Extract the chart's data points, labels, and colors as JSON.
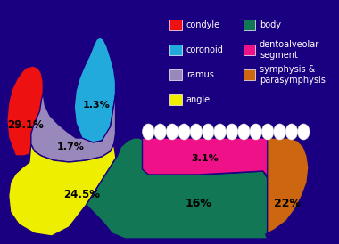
{
  "background_color": "#1a0080",
  "colors": {
    "condyle": "#ee1111",
    "coronoid": "#22aadd",
    "ramus": "#9988bb",
    "angle": "#eeee00",
    "body": "#117755",
    "dentoalveolar": "#ee1188",
    "symphysis": "#cc6611"
  },
  "white": "#ffffff",
  "black": "#000000",
  "label_fontsize": 7.5,
  "legend_fontsize": 7.0,
  "legend_left": [
    [
      "condyle",
      "#ee1111"
    ],
    [
      "coronoid",
      "#22aadd"
    ],
    [
      "ramus",
      "#9988bb"
    ],
    [
      "angle",
      "#eeee00"
    ]
  ],
  "legend_right": [
    [
      "body",
      "#117755"
    ],
    [
      "dentoalveolar\nsegment",
      "#ee1188"
    ],
    [
      "symphysis &\nparasymphysis",
      "#cc6611"
    ]
  ]
}
